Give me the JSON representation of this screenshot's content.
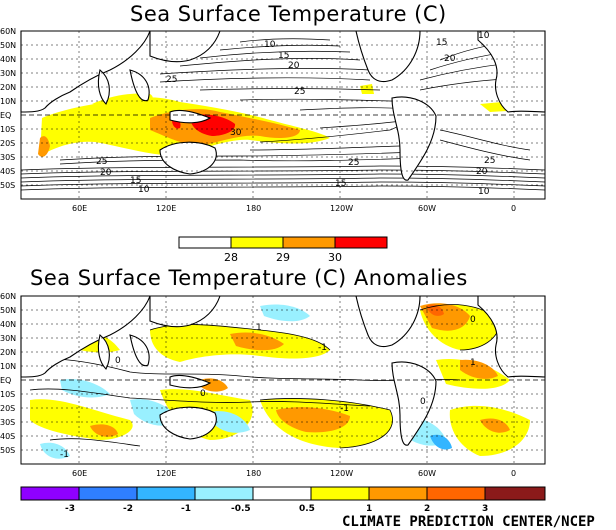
{
  "map1": {
    "title": "Sea Surface Temperature (C)",
    "lat_labels": [
      "60N",
      "50N",
      "40N",
      "30N",
      "20N",
      "10N",
      "EQ",
      "10S",
      "20S",
      "30S",
      "40S",
      "50S"
    ],
    "lon_labels": [
      "60E",
      "120E",
      "180",
      "120W",
      "60W",
      "0"
    ],
    "contour_labels": [
      "10",
      "15",
      "20",
      "25",
      "30",
      "25",
      "20",
      "15",
      "10",
      "25",
      "20",
      "15",
      "10",
      "25",
      "20",
      "15",
      "10",
      "25"
    ],
    "colorbar": {
      "ticks": [
        "28",
        "29",
        "30"
      ],
      "colors": [
        "#ffffff",
        "#ffff00",
        "#ff9900",
        "#ff0000"
      ]
    }
  },
  "map2": {
    "title": "Sea Surface Temperature (C) Anomalies",
    "lat_labels": [
      "60N",
      "50N",
      "40N",
      "30N",
      "20N",
      "10N",
      "EQ",
      "10S",
      "20S",
      "30S",
      "40S",
      "50S"
    ],
    "lon_labels": [
      "60E",
      "120E",
      "180",
      "120W",
      "60W",
      "0"
    ],
    "contour_labels": [
      "-1",
      "-1",
      "0",
      "1",
      "0",
      "-1",
      "0",
      "1",
      "0"
    ],
    "colorbar": {
      "ticks": [
        "-3",
        "-2",
        "-1",
        "-0.5",
        "0.5",
        "1",
        "2",
        "3"
      ],
      "colors": [
        "#8f00ff",
        "#2f7fff",
        "#33b5ff",
        "#99f0ff",
        "#ffffff",
        "#ffff00",
        "#ff9900",
        "#ff6600",
        "#cc3300",
        "#8b1a1a"
      ]
    }
  },
  "credit": "CLIMATE PREDICTION CENTER/NCEP"
}
